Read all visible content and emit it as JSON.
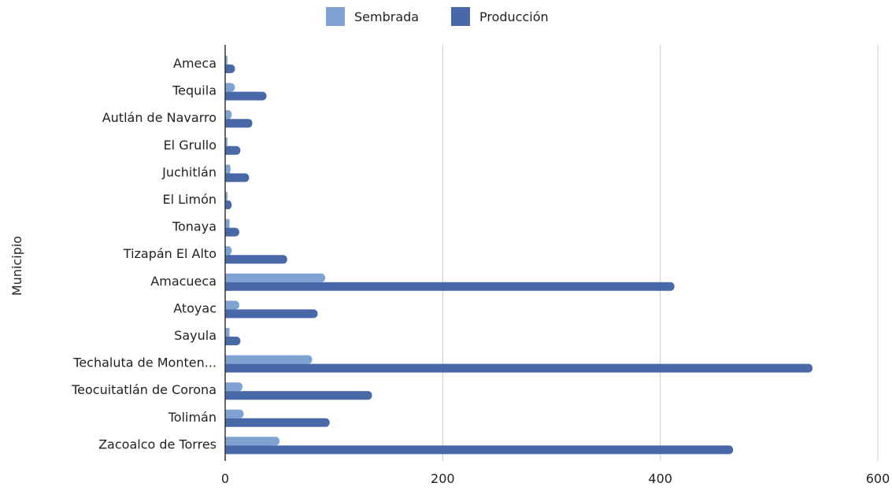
{
  "chart_data": {
    "type": "bar",
    "orientation": "horizontal",
    "categories": [
      "Ameca",
      "Tequila",
      "Autlán de Navarro",
      "El Grullo",
      "Juchitlán",
      "El Limón",
      "Tonaya",
      "Tizapán El Alto",
      "Amacueca",
      "Atoyac",
      "Sayula",
      "Techaluta de Monten...",
      "Teocuitatlán de Corona",
      "Tolimán",
      "Zacoalco de Torres"
    ],
    "series": [
      {
        "name": "Sembrada",
        "color": "#7ea2d1",
        "values": [
          2,
          9,
          6,
          2,
          5,
          2,
          4,
          6,
          92,
          13,
          4,
          80,
          16,
          17,
          50
        ]
      },
      {
        "name": "Producción",
        "color": "#4868a8",
        "values": [
          9,
          38,
          25,
          14,
          22,
          6,
          13,
          57,
          413,
          85,
          14,
          540,
          135,
          96,
          467
        ]
      }
    ],
    "x_ticks": [
      "0",
      "200",
      "400",
      "600"
    ],
    "xlim": [
      0,
      600
    ],
    "ylabel": "Municipio",
    "xlabel": "",
    "title": "",
    "grid": "vertical",
    "legend_position": "top-center",
    "grid_color": "#cccccc",
    "axis_color": "#333333"
  }
}
